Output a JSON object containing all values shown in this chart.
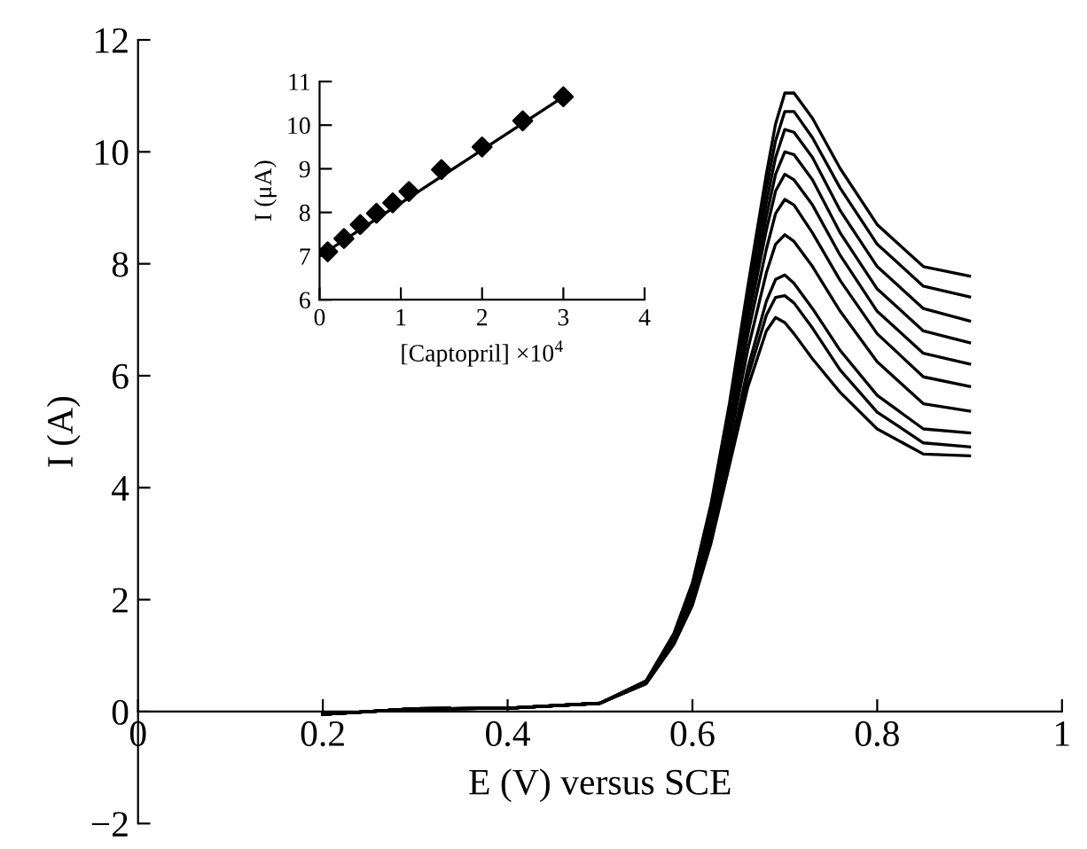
{
  "chart_data": [
    {
      "type": "line",
      "xlabel": "E (V) versus SCE",
      "ylabel": "I (A)",
      "xlim": [
        0,
        1
      ],
      "ylim": [
        -2,
        12
      ],
      "xticks": [
        0,
        0.2,
        0.4,
        0.6,
        0.8,
        1
      ],
      "yticks": [
        {
          "value": -2,
          "label": "−2"
        },
        0,
        2,
        4,
        6,
        8,
        10,
        12
      ],
      "grid": false,
      "marker": "none",
      "line_style": "solid",
      "x": [
        0.2,
        0.3,
        0.4,
        0.5,
        0.55,
        0.58,
        0.6,
        0.62,
        0.64,
        0.66,
        0.68,
        0.69,
        0.7,
        0.71,
        0.73,
        0.76,
        0.8,
        0.85,
        0.9
      ],
      "series": [
        {
          "color": "#000000",
          "values": [
            -0.05,
            0.05,
            0.06,
            0.15,
            0.55,
            1.4,
            2.3,
            3.7,
            5.5,
            7.6,
            9.6,
            10.5,
            11.05,
            11.05,
            10.6,
            9.7,
            8.7,
            7.95,
            7.78
          ]
        },
        {
          "color": "#000000",
          "values": [
            -0.05,
            0.05,
            0.06,
            0.15,
            0.55,
            1.38,
            2.27,
            3.64,
            5.4,
            7.45,
            9.35,
            10.2,
            10.72,
            10.72,
            10.25,
            9.35,
            8.35,
            7.6,
            7.41
          ]
        },
        {
          "color": "#000000",
          "values": [
            -0.05,
            0.05,
            0.06,
            0.15,
            0.54,
            1.37,
            2.24,
            3.59,
            5.3,
            7.3,
            9.1,
            9.9,
            10.4,
            10.35,
            9.9,
            8.95,
            7.95,
            7.2,
            6.98
          ]
        },
        {
          "color": "#000000",
          "values": [
            -0.05,
            0.05,
            0.06,
            0.15,
            0.54,
            1.35,
            2.2,
            3.52,
            5.2,
            7.1,
            8.85,
            9.6,
            10.0,
            9.95,
            9.5,
            8.55,
            7.55,
            6.8,
            6.59
          ]
        },
        {
          "color": "#000000",
          "values": [
            -0.05,
            0.05,
            0.06,
            0.15,
            0.53,
            1.33,
            2.16,
            3.45,
            5.1,
            6.95,
            8.6,
            9.3,
            9.6,
            9.5,
            9.05,
            8.15,
            7.15,
            6.4,
            6.21
          ]
        },
        {
          "color": "#000000",
          "values": [
            -0.05,
            0.05,
            0.06,
            0.15,
            0.53,
            1.3,
            2.11,
            3.36,
            4.97,
            6.74,
            8.26,
            8.9,
            9.15,
            9.05,
            8.55,
            7.7,
            6.75,
            5.98,
            5.81
          ]
        },
        {
          "color": "#000000",
          "values": [
            -0.05,
            0.05,
            0.06,
            0.15,
            0.52,
            1.27,
            2.05,
            3.26,
            4.8,
            6.47,
            7.84,
            8.35,
            8.52,
            8.4,
            7.95,
            7.15,
            6.25,
            5.5,
            5.37
          ]
        },
        {
          "color": "#000000",
          "values": [
            -0.05,
            0.05,
            0.06,
            0.15,
            0.51,
            1.24,
            1.98,
            3.13,
            4.6,
            6.14,
            7.33,
            7.72,
            7.8,
            7.65,
            7.2,
            6.45,
            5.65,
            5.05,
            4.98
          ]
        },
        {
          "color": "#000000",
          "values": [
            -0.05,
            0.05,
            0.06,
            0.15,
            0.5,
            1.22,
            1.94,
            3.07,
            4.51,
            5.98,
            7.08,
            7.4,
            7.43,
            7.3,
            6.85,
            6.1,
            5.35,
            4.8,
            4.73
          ]
        },
        {
          "color": "#000000",
          "values": [
            -0.05,
            0.05,
            0.06,
            0.15,
            0.5,
            1.2,
            1.9,
            3.0,
            4.4,
            5.8,
            6.8,
            7.04,
            6.95,
            6.75,
            6.3,
            5.7,
            5.05,
            4.6,
            4.57
          ]
        }
      ]
    },
    {
      "type": "scatter",
      "xlabel": "[Captopril] ×10$^{4}$",
      "ylabel": "I (μA)",
      "xlim": [
        0,
        4
      ],
      "ylim": [
        6,
        11
      ],
      "xticks": [
        0,
        1,
        2,
        3,
        4
      ],
      "yticks": [
        6,
        7,
        8,
        9,
        10,
        11
      ],
      "grid": false,
      "series": [
        {
          "type": "scatter",
          "marker": "diamond",
          "color": "#000000",
          "x": [
            0.1,
            0.3,
            0.5,
            0.7,
            0.9,
            1.1,
            1.5,
            2,
            2.5,
            3
          ],
          "values": [
            7.1,
            7.4,
            7.72,
            7.98,
            8.22,
            8.48,
            8.98,
            9.5,
            10.1,
            10.65
          ]
        },
        {
          "type": "line",
          "color": "#000000",
          "x": [
            0.1,
            3
          ],
          "values": [
            7.12,
            10.65
          ]
        }
      ]
    }
  ]
}
